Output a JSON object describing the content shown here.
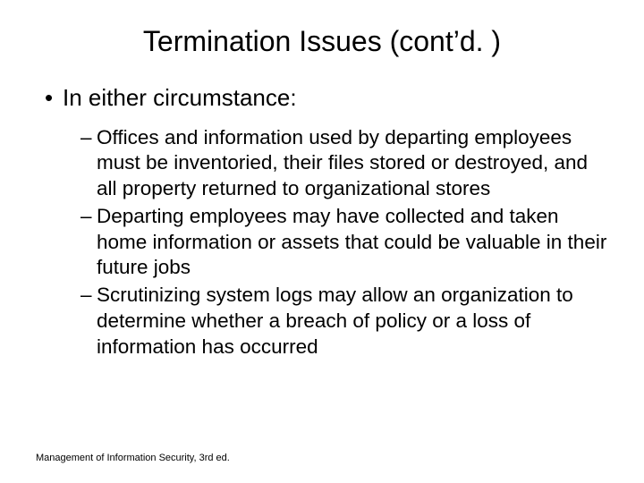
{
  "slide": {
    "title": "Termination Issues (cont’d. )",
    "bullet_level1": "In either circumstance:",
    "bullets_level2": [
      "Offices and information used by departing employees must be inventoried, their files stored or destroyed, and all property returned to organizational stores",
      "Departing employees may have collected and taken home information or assets that could be valuable in their future jobs",
      "Scrutinizing system logs may allow an organization to determine whether a breach of policy or a loss of information has occurred"
    ],
    "footer": "Management of Information Security, 3rd ed."
  },
  "style": {
    "background_color": "#ffffff",
    "text_color": "#000000",
    "title_fontsize": 32,
    "level1_fontsize": 26,
    "level2_fontsize": 22.5,
    "footer_fontsize": 11,
    "font_family": "Arial"
  }
}
